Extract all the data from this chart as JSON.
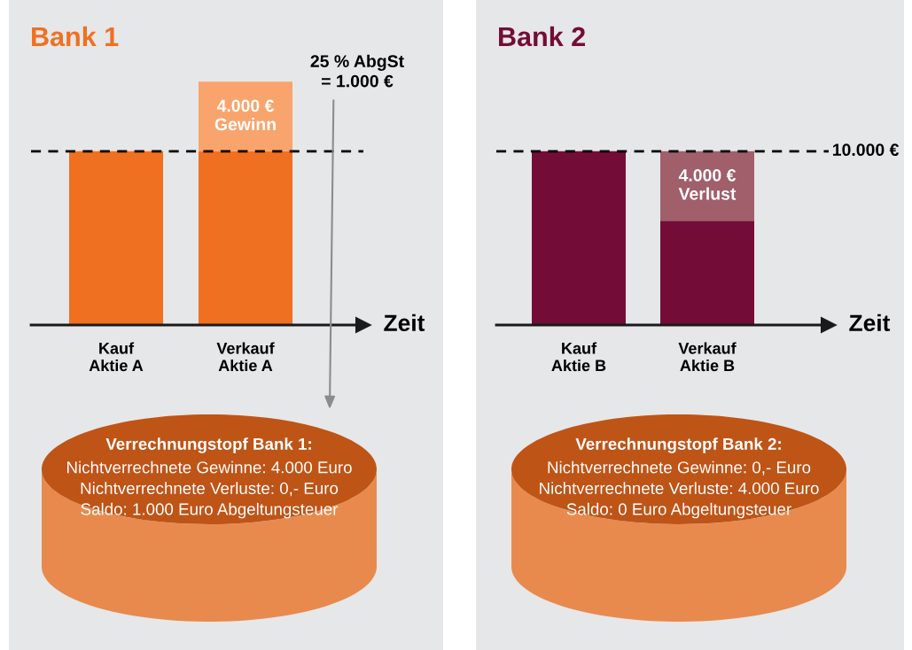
{
  "chart_data": [
    {
      "type": "bar",
      "title": "Bank 1",
      "xlabel": "Zeit",
      "categories": [
        "Kauf\nAktie A",
        "Verkauf\nAktie A"
      ],
      "stacked": true,
      "series": [
        {
          "color": "#f07022",
          "values": [
            10000,
            10000
          ]
        },
        {
          "color": "#f9a46c",
          "values": [
            null,
            4000
          ],
          "value_labels": [
            null,
            "4.000 €\nGewinn"
          ]
        }
      ],
      "ref_lines": [
        {
          "axis": "y",
          "value": 10000,
          "label": null,
          "color": "#000000",
          "line_style": "dashed"
        }
      ],
      "annotations": [
        "25 % AbgSt\n= 1.000 €",
        "Verrechnungstopf Bank 1:",
        "Nichtverrechnete Gewinne: 4.000 Euro\nNichtverrechnete Verluste: 0,- Euro\nSaldo: 1.000 Euro Abgeltungsteuer"
      ]
    },
    {
      "type": "bar",
      "title": "Bank 2",
      "xlabel": "Zeit",
      "categories": [
        "Kauf\nAktie B",
        "Verkauf\nAktie B"
      ],
      "stacked": true,
      "series": [
        {
          "color": "#730d37",
          "values": [
            10000,
            6000
          ]
        },
        {
          "color": "#a05f6a",
          "values": [
            null,
            4000
          ],
          "value_labels": [
            null,
            "4.000 €\nVerlust"
          ]
        }
      ],
      "ref_lines": [
        {
          "axis": "y",
          "value": 10000,
          "label": "10.000 €",
          "color": "#000000",
          "line_style": "dashed"
        }
      ],
      "annotations": [
        "Verrechnungstopf Bank 2:",
        "Nichtverrechnete Gewinne: 0,- Euro\nNichtverrechnete Verluste: 4.000 Euro\nSaldo: 0 Euro Abgeltungsteuer"
      ]
    }
  ]
}
